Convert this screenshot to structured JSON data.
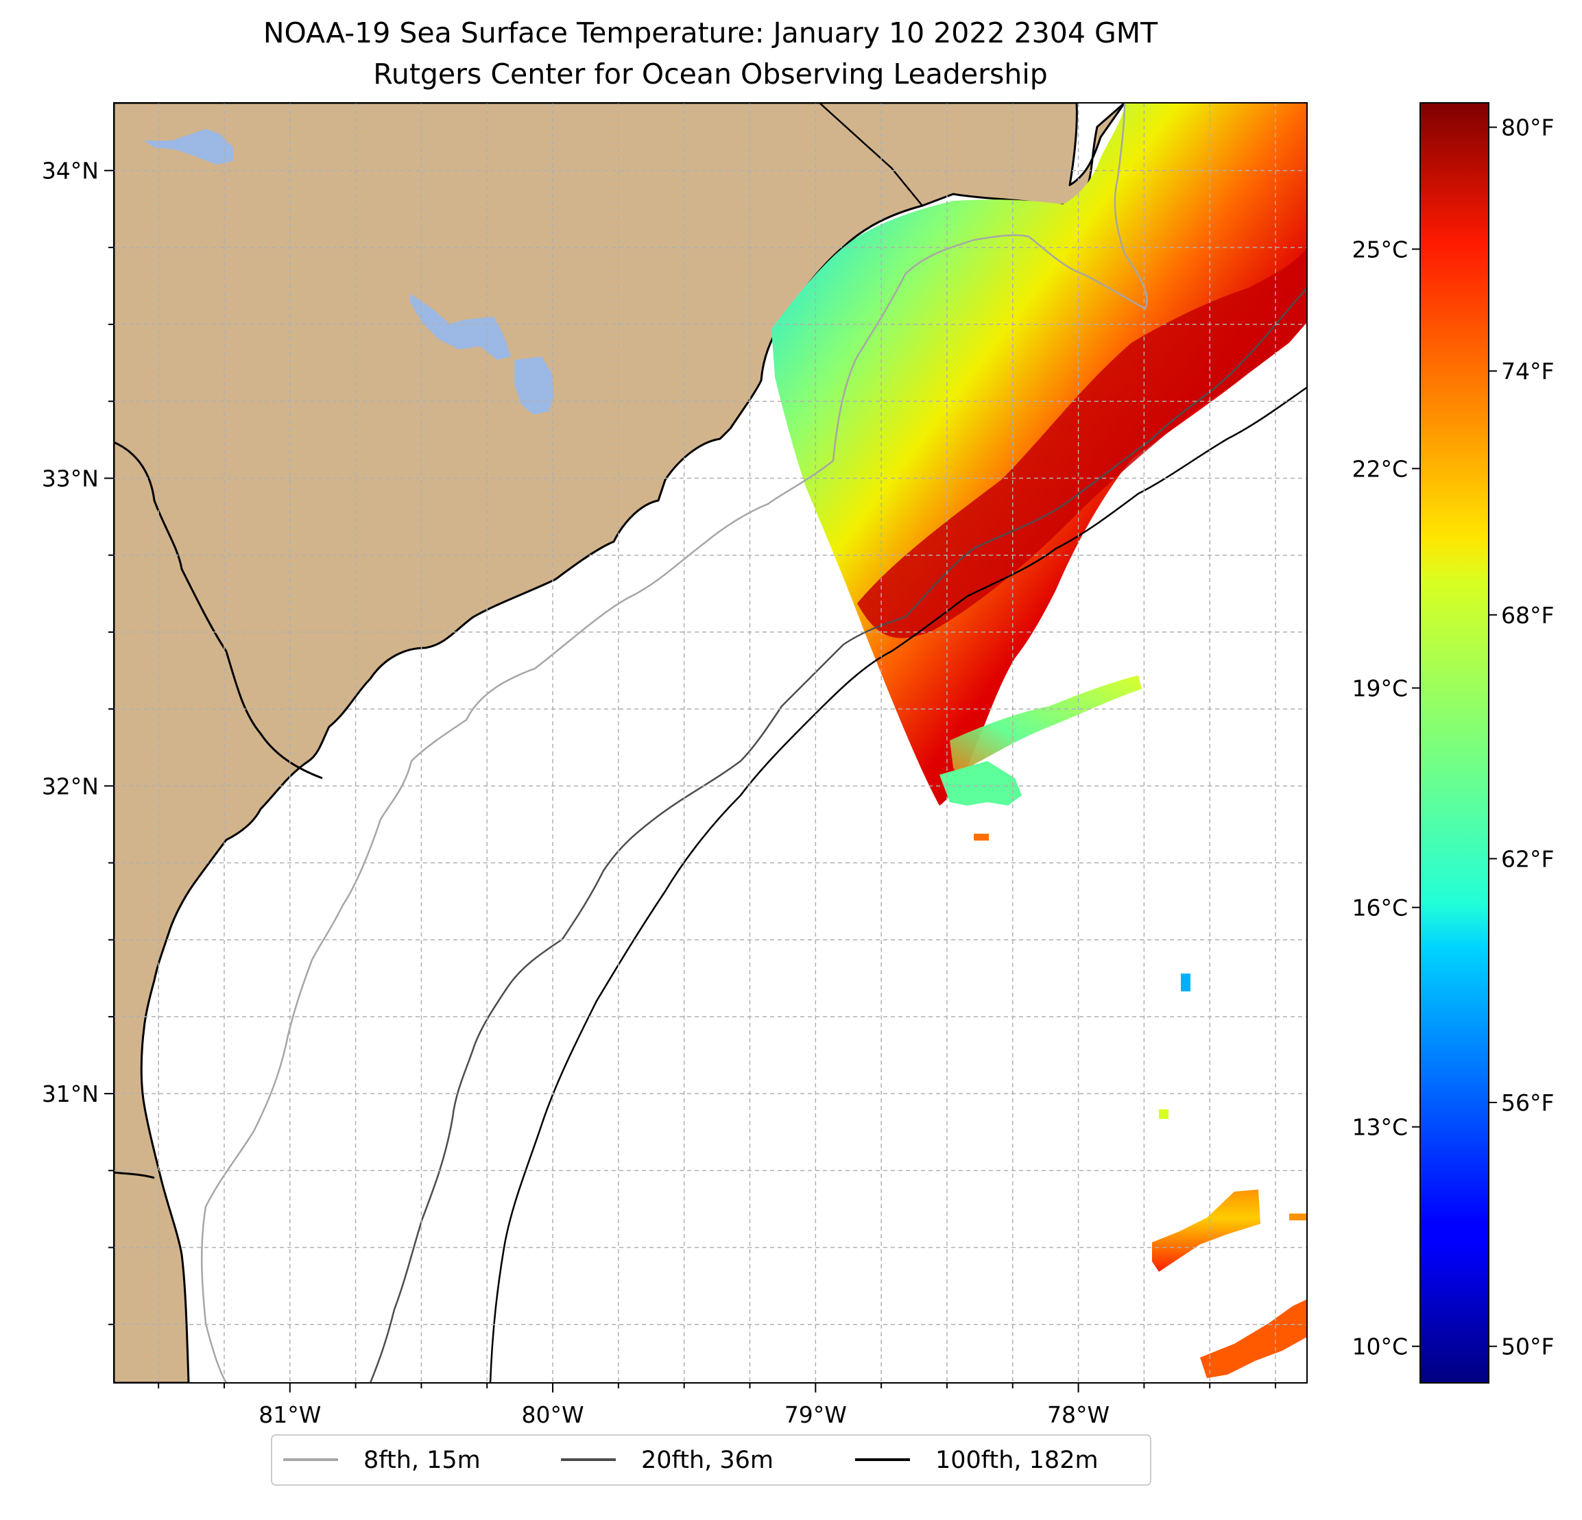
{
  "title": {
    "line1": "NOAA-19 Sea Surface Temperature: January 10 2022 2304 GMT",
    "line2": "Rutgers Center for Ocean Observing Leadership"
  },
  "map": {
    "longitude_range": [
      -81.67,
      -77.13
    ],
    "latitude_range": [
      30.06,
      34.22
    ],
    "x_ticks": [
      {
        "lon": -81,
        "label": "81°W"
      },
      {
        "lon": -80,
        "label": "80°W"
      },
      {
        "lon": -79,
        "label": "79°W"
      },
      {
        "lon": -78,
        "label": "78°W"
      }
    ],
    "y_ticks": [
      {
        "lat": 34,
        "label": "34°N"
      },
      {
        "lat": 33,
        "label": "33°N"
      },
      {
        "lat": 32,
        "label": "32°N"
      },
      {
        "lat": 31,
        "label": "31°N"
      }
    ],
    "minor_grid_step_deg": 0.25,
    "grid": true,
    "colors": {
      "land": "#d2b48c",
      "lakes": "#9cb8e4",
      "ocean": "#ffffff",
      "grid": "#b0b0b0"
    }
  },
  "colorbar": {
    "colormap": "jet",
    "range_celsius": [
      9.5,
      27
    ],
    "celsius_ticks": [
      {
        "value": 25,
        "label": "25°C"
      },
      {
        "value": 22,
        "label": "22°C"
      },
      {
        "value": 19,
        "label": "19°C"
      },
      {
        "value": 16,
        "label": "16°C"
      },
      {
        "value": 13,
        "label": "13°C"
      },
      {
        "value": 10,
        "label": "10°C"
      }
    ],
    "fahrenheit_ticks": [
      {
        "value": 80,
        "label": "80°F"
      },
      {
        "value": 74,
        "label": "74°F"
      },
      {
        "value": 68,
        "label": "68°F"
      },
      {
        "value": 62,
        "label": "62°F"
      },
      {
        "value": 56,
        "label": "56°F"
      },
      {
        "value": 50,
        "label": "50°F"
      }
    ]
  },
  "legend": {
    "placement": "below-map",
    "items": [
      {
        "label": "8fth, 15m",
        "color": "#a6a6a6"
      },
      {
        "label": "20fth, 36m",
        "color": "#4d4d4d"
      },
      {
        "label": "100fth, 182m",
        "color": "#000000"
      }
    ]
  }
}
